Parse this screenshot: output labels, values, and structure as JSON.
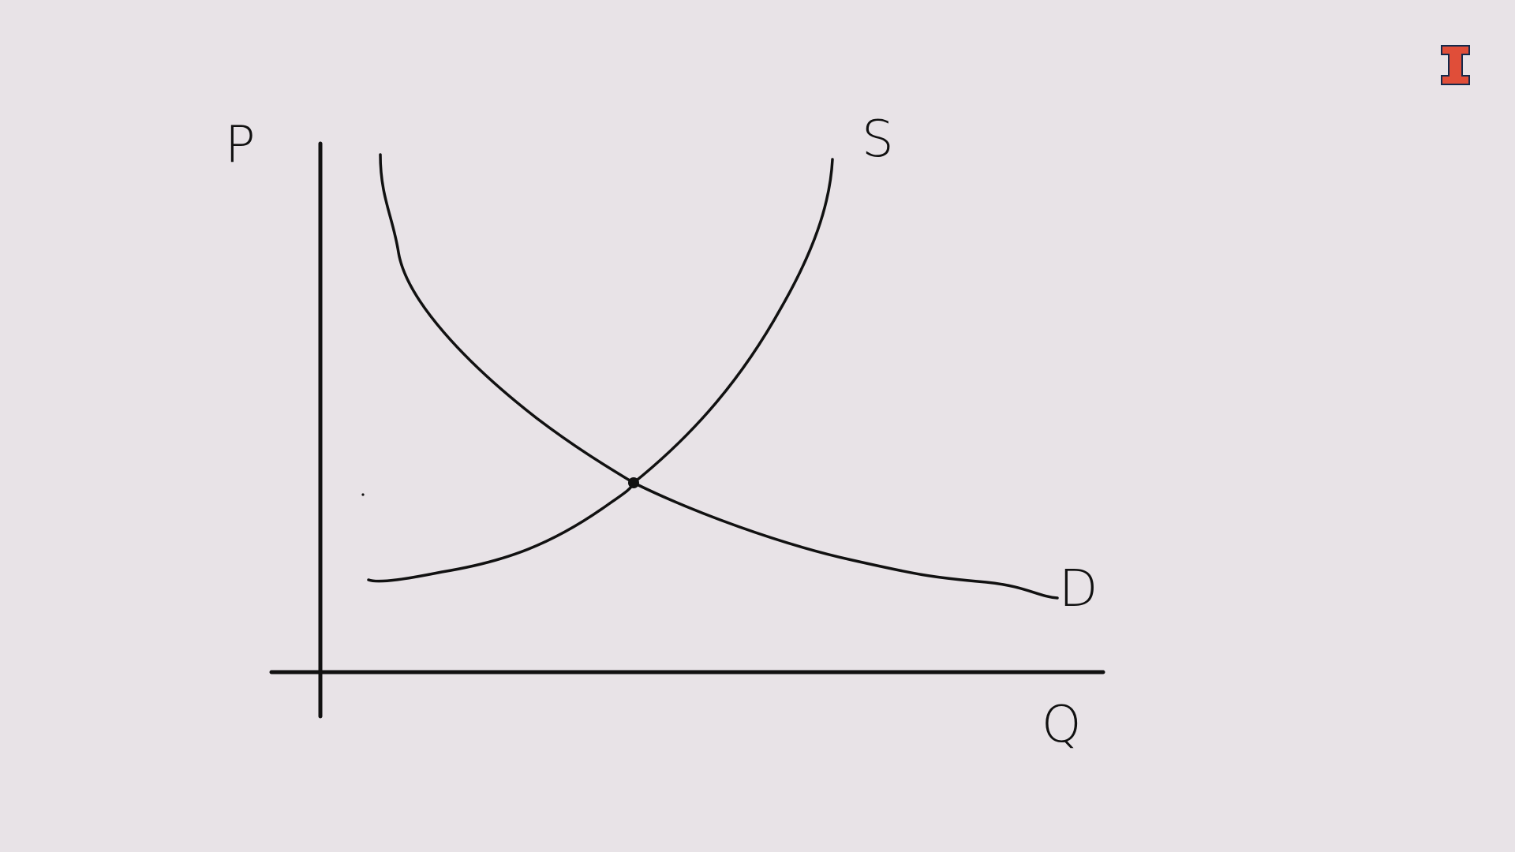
{
  "colors": {
    "background": "#E8E3E7",
    "ink": "#111111",
    "logo": "#E04E39",
    "logo_outline": "#13294B"
  },
  "diagram": {
    "y_axis_label": "P",
    "x_axis_label": "Q",
    "curves": [
      {
        "name": "supply-curve",
        "label": "S"
      },
      {
        "name": "demand-curve",
        "label": "D"
      }
    ],
    "marked_point": "equilibrium"
  },
  "logo": {
    "icon": "block-i-logo",
    "letter": "I"
  }
}
